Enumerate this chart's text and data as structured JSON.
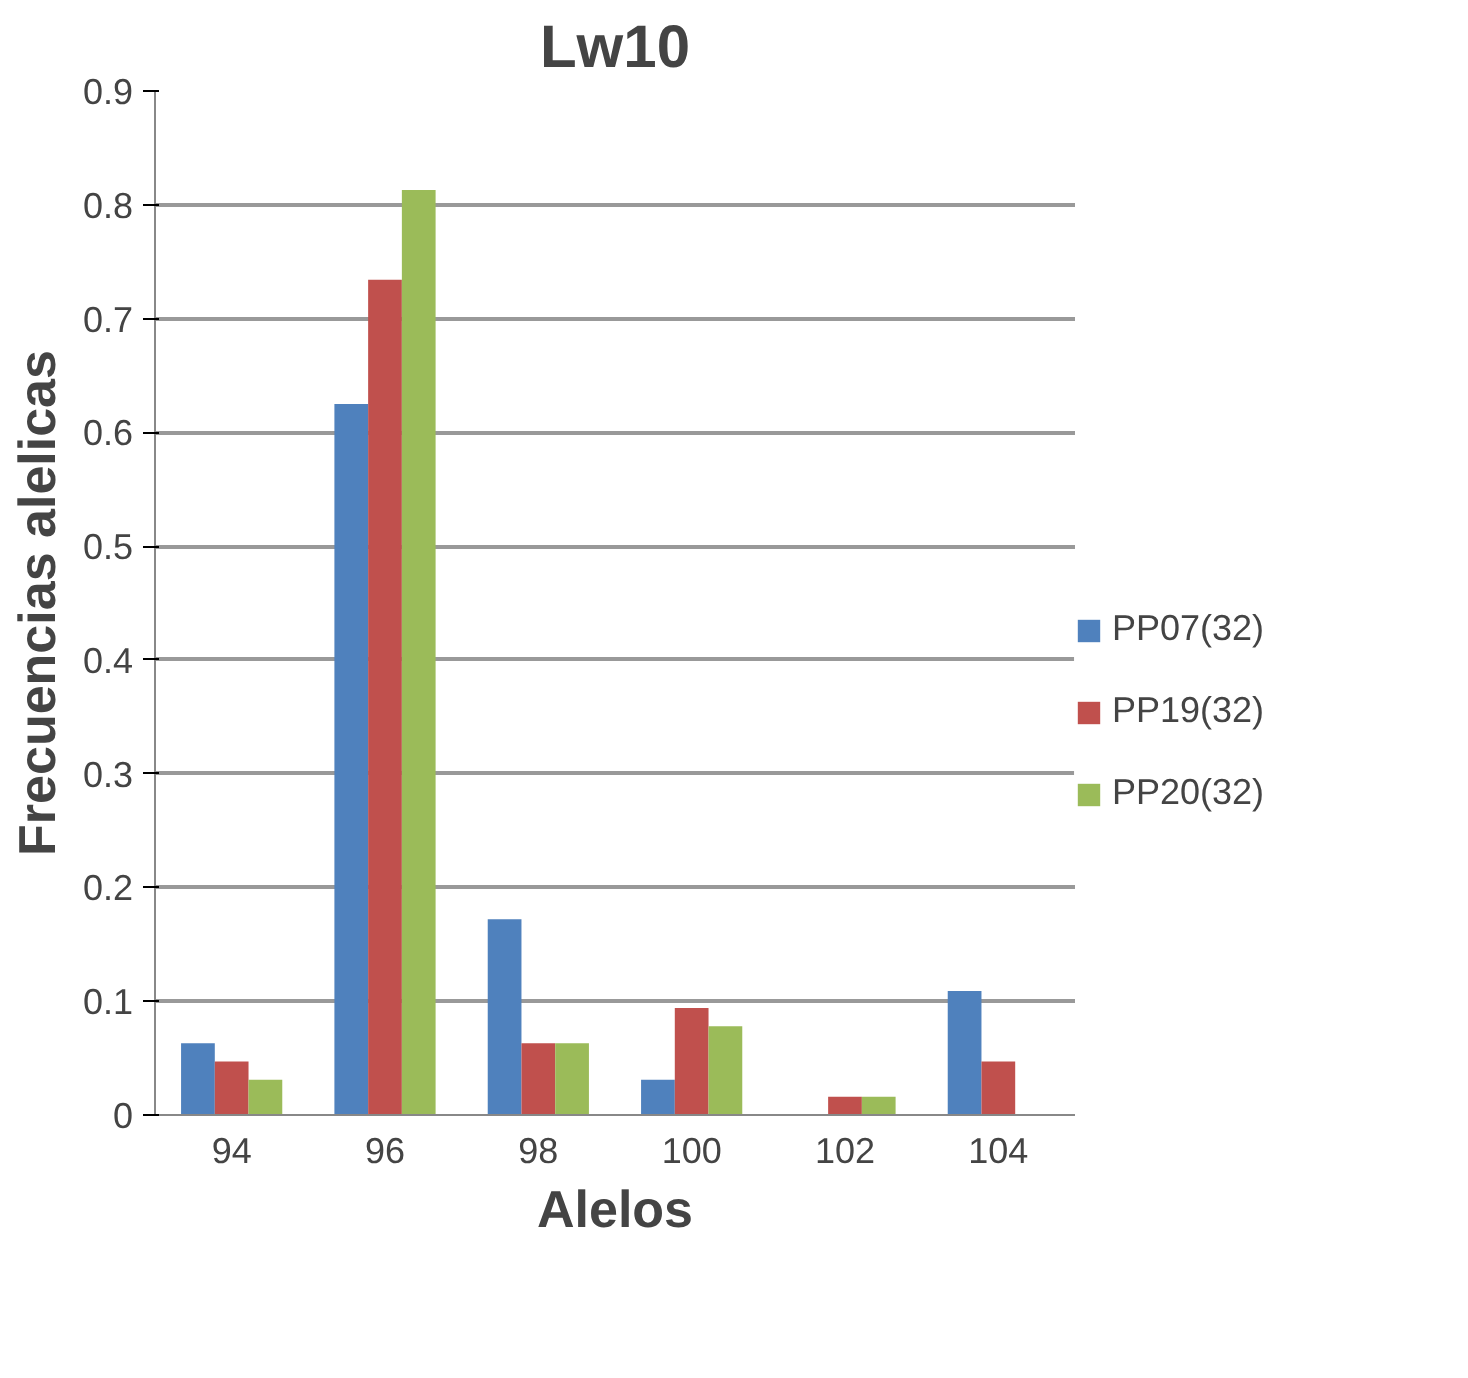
{
  "chart_data": {
    "type": "bar",
    "title": "Lw10",
    "xlabel": "Alelos",
    "ylabel": "Frecuencias alelicas",
    "categories": [
      "94",
      "96",
      "98",
      "100",
      "102",
      "104"
    ],
    "series": [
      {
        "name": "PP07(32)",
        "color": "#4f81bd",
        "values": [
          0.063,
          0.625,
          0.172,
          0.031,
          0,
          0.109
        ]
      },
      {
        "name": "PP19(32)",
        "color": "#c0504d",
        "values": [
          0.047,
          0.734,
          0.063,
          0.094,
          0.016,
          0.047
        ]
      },
      {
        "name": "PP20(32)",
        "color": "#9bbb59",
        "values": [
          0.031,
          0.813,
          0.063,
          0.078,
          0.016,
          0
        ]
      }
    ],
    "ylim": [
      0,
      0.9
    ],
    "yticks": [
      0,
      0.1,
      0.2,
      0.3,
      0.4,
      0.5,
      0.6,
      0.7,
      0.8,
      0.9
    ],
    "grid": "y",
    "legend": "right"
  }
}
